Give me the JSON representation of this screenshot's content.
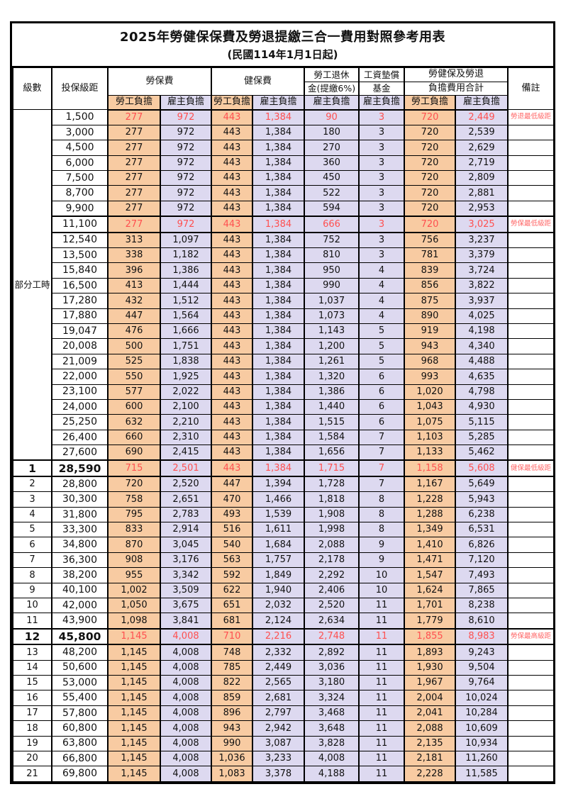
{
  "title": "2025年勞健保保費及勞退提繳三合一費用對照參考用表",
  "subtitle": "(民國114年1月1日起)",
  "colors": {
    "employee_bg": "#F8CBA2",
    "employer_bg": "#DDD9F0",
    "highlight_text": "#FF5050",
    "remark_text": "#FF6666"
  },
  "header": {
    "level": "級數",
    "bracket": "投保級距",
    "labor_ins": "勞保費",
    "health_ins": "健保費",
    "pension_line1": "勞工退休",
    "pension_line2": "金(提繳6%)",
    "fund_line1": "工資墊償",
    "fund_line2": "基金",
    "total_line1": "勞健保及勞退",
    "total_line2": "負擔費用合計",
    "remark": "備註",
    "employee": "勞工負擔",
    "employer": "雇主負擔"
  },
  "value_col_types": [
    "ee",
    "er",
    "ee",
    "er",
    "er",
    "er",
    "ee",
    "er"
  ],
  "rows": [
    {
      "level": "部分工時",
      "group_span": 23,
      "bracket": "1,500",
      "v": [
        "277",
        "972",
        "443",
        "1,384",
        "90",
        "3",
        "720",
        "2,449"
      ],
      "remark": "勞退最低級距",
      "hl": true
    },
    {
      "level": null,
      "bracket": "3,000",
      "v": [
        "277",
        "972",
        "443",
        "1,384",
        "180",
        "3",
        "720",
        "2,539"
      ],
      "remark": ""
    },
    {
      "level": null,
      "bracket": "4,500",
      "v": [
        "277",
        "972",
        "443",
        "1,384",
        "270",
        "3",
        "720",
        "2,629"
      ],
      "remark": ""
    },
    {
      "level": null,
      "bracket": "6,000",
      "v": [
        "277",
        "972",
        "443",
        "1,384",
        "360",
        "3",
        "720",
        "2,719"
      ],
      "remark": ""
    },
    {
      "level": null,
      "bracket": "7,500",
      "v": [
        "277",
        "972",
        "443",
        "1,384",
        "450",
        "3",
        "720",
        "2,809"
      ],
      "remark": ""
    },
    {
      "level": null,
      "bracket": "8,700",
      "v": [
        "277",
        "972",
        "443",
        "1,384",
        "522",
        "3",
        "720",
        "2,881"
      ],
      "remark": ""
    },
    {
      "level": null,
      "bracket": "9,900",
      "v": [
        "277",
        "972",
        "443",
        "1,384",
        "594",
        "3",
        "720",
        "2,953"
      ],
      "remark": ""
    },
    {
      "level": null,
      "bracket": "11,100",
      "v": [
        "277",
        "972",
        "443",
        "1,384",
        "666",
        "3",
        "720",
        "3,025"
      ],
      "remark": "勞保最低級距",
      "hl": true,
      "thick": true
    },
    {
      "level": null,
      "bracket": "12,540",
      "v": [
        "313",
        "1,097",
        "443",
        "1,384",
        "752",
        "3",
        "756",
        "3,237"
      ],
      "remark": ""
    },
    {
      "level": null,
      "bracket": "13,500",
      "v": [
        "338",
        "1,182",
        "443",
        "1,384",
        "810",
        "3",
        "781",
        "3,379"
      ],
      "remark": ""
    },
    {
      "level": null,
      "bracket": "15,840",
      "v": [
        "396",
        "1,386",
        "443",
        "1,384",
        "950",
        "4",
        "839",
        "3,724"
      ],
      "remark": ""
    },
    {
      "level": null,
      "bracket": "16,500",
      "v": [
        "413",
        "1,444",
        "443",
        "1,384",
        "990",
        "4",
        "856",
        "3,822"
      ],
      "remark": ""
    },
    {
      "level": null,
      "bracket": "17,280",
      "v": [
        "432",
        "1,512",
        "443",
        "1,384",
        "1,037",
        "4",
        "875",
        "3,937"
      ],
      "remark": ""
    },
    {
      "level": null,
      "bracket": "17,880",
      "v": [
        "447",
        "1,564",
        "443",
        "1,384",
        "1,073",
        "4",
        "890",
        "4,025"
      ],
      "remark": ""
    },
    {
      "level": null,
      "bracket": "19,047",
      "v": [
        "476",
        "1,666",
        "443",
        "1,384",
        "1,143",
        "5",
        "919",
        "4,198"
      ],
      "remark": ""
    },
    {
      "level": null,
      "bracket": "20,008",
      "v": [
        "500",
        "1,751",
        "443",
        "1,384",
        "1,200",
        "5",
        "943",
        "4,340"
      ],
      "remark": ""
    },
    {
      "level": null,
      "bracket": "21,009",
      "v": [
        "525",
        "1,838",
        "443",
        "1,384",
        "1,261",
        "5",
        "968",
        "4,488"
      ],
      "remark": ""
    },
    {
      "level": null,
      "bracket": "22,000",
      "v": [
        "550",
        "1,925",
        "443",
        "1,384",
        "1,320",
        "6",
        "993",
        "4,635"
      ],
      "remark": ""
    },
    {
      "level": null,
      "bracket": "23,100",
      "v": [
        "577",
        "2,022",
        "443",
        "1,384",
        "1,386",
        "6",
        "1,020",
        "4,798"
      ],
      "remark": ""
    },
    {
      "level": null,
      "bracket": "24,000",
      "v": [
        "600",
        "2,100",
        "443",
        "1,384",
        "1,440",
        "6",
        "1,043",
        "4,930"
      ],
      "remark": ""
    },
    {
      "level": null,
      "bracket": "25,250",
      "v": [
        "632",
        "2,210",
        "443",
        "1,384",
        "1,515",
        "6",
        "1,075",
        "5,115"
      ],
      "remark": ""
    },
    {
      "level": null,
      "bracket": "26,400",
      "v": [
        "660",
        "2,310",
        "443",
        "1,384",
        "1,584",
        "7",
        "1,103",
        "5,285"
      ],
      "remark": ""
    },
    {
      "level": null,
      "bracket": "27,600",
      "v": [
        "690",
        "2,415",
        "443",
        "1,384",
        "1,656",
        "7",
        "1,133",
        "5,462"
      ],
      "remark": ""
    },
    {
      "level": "1",
      "bracket": "28,590",
      "v": [
        "715",
        "2,501",
        "443",
        "1,384",
        "1,715",
        "7",
        "1,158",
        "5,608"
      ],
      "remark": "健保最低級距",
      "hl": true,
      "thick": true,
      "big": true
    },
    {
      "level": "2",
      "bracket": "28,800",
      "v": [
        "720",
        "2,520",
        "447",
        "1,394",
        "1,728",
        "7",
        "1,167",
        "5,649"
      ],
      "remark": ""
    },
    {
      "level": "3",
      "bracket": "30,300",
      "v": [
        "758",
        "2,651",
        "470",
        "1,466",
        "1,818",
        "8",
        "1,228",
        "5,943"
      ],
      "remark": ""
    },
    {
      "level": "4",
      "bracket": "31,800",
      "v": [
        "795",
        "2,783",
        "493",
        "1,539",
        "1,908",
        "8",
        "1,288",
        "6,238"
      ],
      "remark": ""
    },
    {
      "level": "5",
      "bracket": "33,300",
      "v": [
        "833",
        "2,914",
        "516",
        "1,611",
        "1,998",
        "8",
        "1,349",
        "6,531"
      ],
      "remark": ""
    },
    {
      "level": "6",
      "bracket": "34,800",
      "v": [
        "870",
        "3,045",
        "540",
        "1,684",
        "2,088",
        "9",
        "1,410",
        "6,826"
      ],
      "remark": ""
    },
    {
      "level": "7",
      "bracket": "36,300",
      "v": [
        "908",
        "3,176",
        "563",
        "1,757",
        "2,178",
        "9",
        "1,471",
        "7,120"
      ],
      "remark": ""
    },
    {
      "level": "8",
      "bracket": "38,200",
      "v": [
        "955",
        "3,342",
        "592",
        "1,849",
        "2,292",
        "10",
        "1,547",
        "7,493"
      ],
      "remark": ""
    },
    {
      "level": "9",
      "bracket": "40,100",
      "v": [
        "1,002",
        "3,509",
        "622",
        "1,940",
        "2,406",
        "10",
        "1,624",
        "7,865"
      ],
      "remark": ""
    },
    {
      "level": "10",
      "bracket": "42,000",
      "v": [
        "1,050",
        "3,675",
        "651",
        "2,032",
        "2,520",
        "11",
        "1,701",
        "8,238"
      ],
      "remark": ""
    },
    {
      "level": "11",
      "bracket": "43,900",
      "v": [
        "1,098",
        "3,841",
        "681",
        "2,124",
        "2,634",
        "11",
        "1,779",
        "8,610"
      ],
      "remark": ""
    },
    {
      "level": "12",
      "bracket": "45,800",
      "v": [
        "1,145",
        "4,008",
        "710",
        "2,216",
        "2,748",
        "11",
        "1,855",
        "8,983"
      ],
      "remark": "勞保最高級距",
      "hl": true,
      "thick": true,
      "big": true
    },
    {
      "level": "13",
      "bracket": "48,200",
      "v": [
        "1,145",
        "4,008",
        "748",
        "2,332",
        "2,892",
        "11",
        "1,893",
        "9,243"
      ],
      "remark": ""
    },
    {
      "level": "14",
      "bracket": "50,600",
      "v": [
        "1,145",
        "4,008",
        "785",
        "2,449",
        "3,036",
        "11",
        "1,930",
        "9,504"
      ],
      "remark": ""
    },
    {
      "level": "15",
      "bracket": "53,000",
      "v": [
        "1,145",
        "4,008",
        "822",
        "2,565",
        "3,180",
        "11",
        "1,967",
        "9,764"
      ],
      "remark": ""
    },
    {
      "level": "16",
      "bracket": "55,400",
      "v": [
        "1,145",
        "4,008",
        "859",
        "2,681",
        "3,324",
        "11",
        "2,004",
        "10,024"
      ],
      "remark": ""
    },
    {
      "level": "17",
      "bracket": "57,800",
      "v": [
        "1,145",
        "4,008",
        "896",
        "2,797",
        "3,468",
        "11",
        "2,041",
        "10,284"
      ],
      "remark": ""
    },
    {
      "level": "18",
      "bracket": "60,800",
      "v": [
        "1,145",
        "4,008",
        "943",
        "2,942",
        "3,648",
        "11",
        "2,088",
        "10,609"
      ],
      "remark": ""
    },
    {
      "level": "19",
      "bracket": "63,800",
      "v": [
        "1,145",
        "4,008",
        "990",
        "3,087",
        "3,828",
        "11",
        "2,135",
        "10,934"
      ],
      "remark": ""
    },
    {
      "level": "20",
      "bracket": "66,800",
      "v": [
        "1,145",
        "4,008",
        "1,036",
        "3,233",
        "4,008",
        "11",
        "2,181",
        "11,260"
      ],
      "remark": ""
    },
    {
      "level": "21",
      "bracket": "69,800",
      "v": [
        "1,145",
        "4,008",
        "1,083",
        "3,378",
        "4,188",
        "11",
        "2,228",
        "11,585"
      ],
      "remark": ""
    }
  ]
}
